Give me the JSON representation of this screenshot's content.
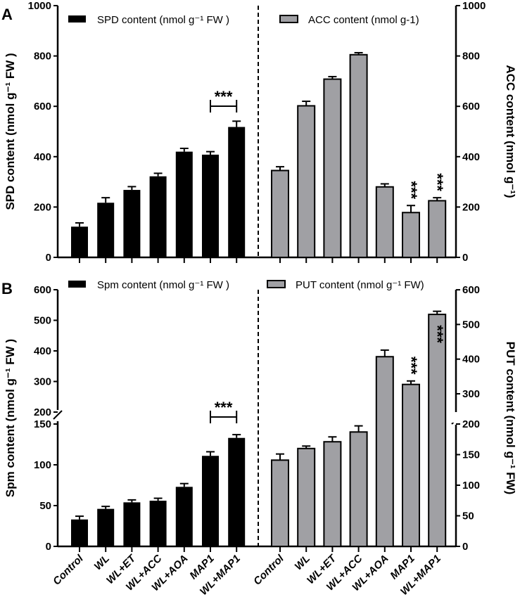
{
  "chart_data": [
    {
      "panel_label": "A",
      "type": "bar",
      "categories": [
        "Control",
        "WL",
        "WL+ET",
        "WL+ACC",
        "WL+AOA",
        "MAP1",
        "WL+MAP1"
      ],
      "left": {
        "ylabel": "SPD content (nmol g⁻¹ FW )",
        "ylim": [
          0,
          1000
        ],
        "ticks": [
          "0",
          "200",
          "400",
          "600",
          "800",
          "1000"
        ],
        "series": {
          "name": "SPD content (nmol g⁻¹ FW )",
          "color": "#000000",
          "values": [
            122,
            217,
            268,
            322,
            420,
            408,
            518
          ],
          "errors": [
            15,
            20,
            13,
            12,
            13,
            12,
            23
          ]
        },
        "significance": {
          "text": "***",
          "between": [
            "MAP1",
            "WL+MAP1"
          ]
        }
      },
      "right": {
        "ylabel": "ACC content (nmol g⁻¹)",
        "ylim": [
          0,
          1000
        ],
        "ticks": [
          "0",
          "200",
          "400",
          "600",
          "800",
          "1000"
        ],
        "series": {
          "name": "ACC content (nmol g-1)",
          "color": "#a0a0a4",
          "values": [
            345,
            602,
            708,
            805,
            280,
            178,
            225
          ],
          "errors": [
            15,
            18,
            10,
            8,
            12,
            28,
            12
          ]
        },
        "significance": [
          {
            "text": "***",
            "on": "MAP1"
          },
          {
            "text": "***",
            "on": "WL+MAP1"
          }
        ]
      }
    },
    {
      "panel_label": "B",
      "type": "bar",
      "categories": [
        "Control",
        "WL",
        "WL+ET",
        "WL+ACC",
        "WL+AOA",
        "MAP1",
        "WL+MAP1"
      ],
      "left": {
        "ylabel": "Spm  content (nmol g⁻¹ FW )",
        "ylim": [
          0,
          600
        ],
        "axis_break": [
          150,
          200
        ],
        "ticks": [
          "0",
          "50",
          "100",
          "150",
          "200",
          "300",
          "400",
          "500",
          "600"
        ],
        "series": {
          "name": "Spm  content (nmol g⁻¹ FW )",
          "color": "#000000",
          "values": [
            33,
            46,
            54,
            56,
            73,
            111,
            133
          ],
          "errors": [
            4,
            3,
            3,
            3,
            4,
            5,
            4
          ]
        },
        "significance": {
          "text": "***",
          "between": [
            "MAP1",
            "WL+MAP1"
          ]
        }
      },
      "right": {
        "ylabel": "PUT content (nmol g⁻¹ FW)",
        "ylim": [
          0,
          600
        ],
        "axis_break": [
          200,
          250
        ],
        "ticks": [
          "0",
          "50",
          "100",
          "150",
          "200",
          "300",
          "400",
          "500",
          "600"
        ],
        "series": {
          "name": "PUT content (nmol g⁻¹ FW)",
          "color": "#a0a0a4",
          "values": [
            141,
            160,
            171,
            187,
            407,
            327,
            529
          ],
          "errors": [
            10,
            4,
            8,
            10,
            19,
            10,
            9
          ]
        },
        "significance": [
          {
            "text": "***",
            "on": "MAP1"
          },
          {
            "text": "***",
            "on": "WL+MAP1"
          }
        ]
      }
    }
  ]
}
